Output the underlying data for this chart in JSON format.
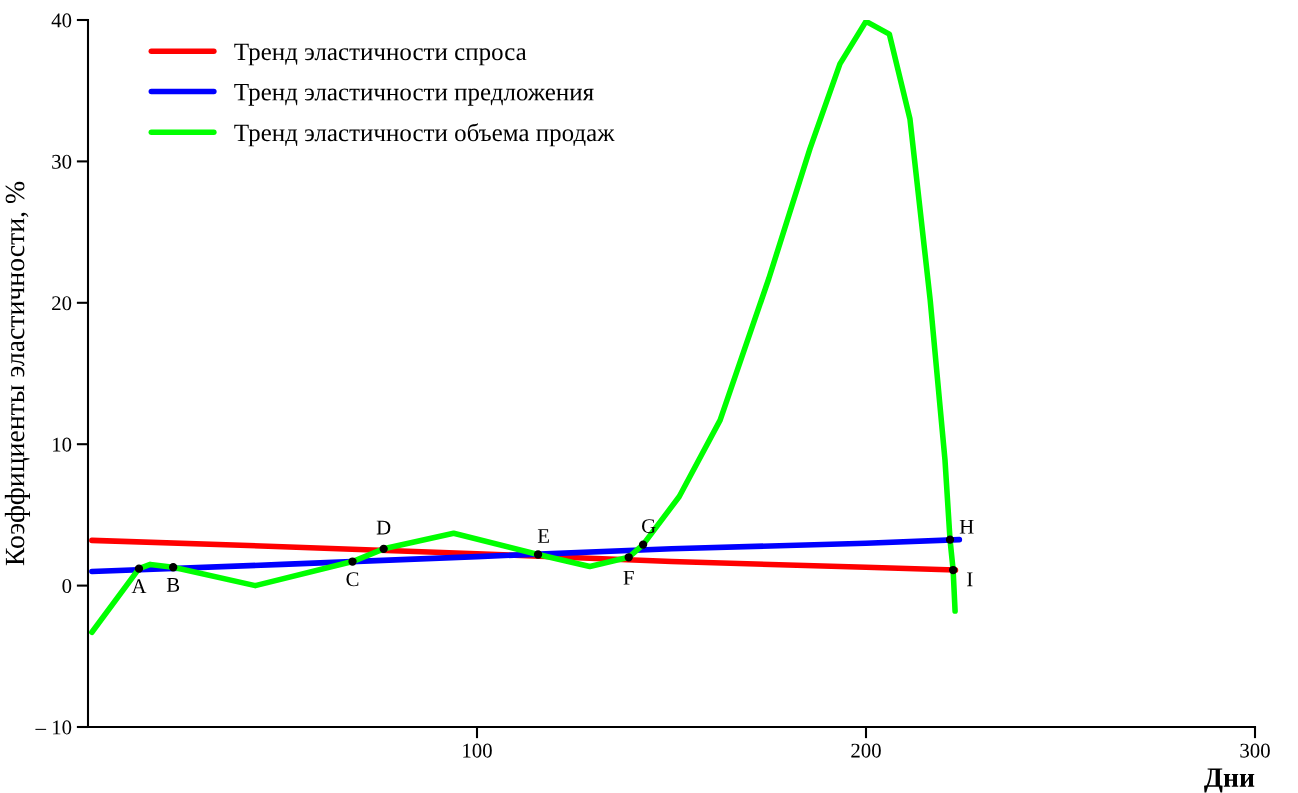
{
  "chart_data": {
    "type": "line",
    "xlabel": "Дни",
    "ylabel": "Коэффициенты эластичности, %",
    "xlim": [
      0,
      300
    ],
    "xticks": [
      100,
      200,
      300
    ],
    "ylim": [
      -10,
      40
    ],
    "yticks": [
      {
        "value": -10,
        "label": "– 10"
      },
      0,
      10,
      20,
      30,
      40
    ],
    "grid": false,
    "legend": "top left",
    "marker": "none",
    "line_style": "solid",
    "series": [
      {
        "name": "Тренд эластичности спроса",
        "color": "#ff0000",
        "x": [
          1,
          50,
          100,
          150,
          200,
          223
        ],
        "values": [
          3.2,
          2.75,
          2.25,
          1.7,
          1.3,
          1.1
        ]
      },
      {
        "name": "Тренд эластичности предложения",
        "color": "#0000ff",
        "x": [
          1,
          50,
          100,
          150,
          200,
          224
        ],
        "values": [
          1.0,
          1.5,
          2.05,
          2.6,
          3.0,
          3.25
        ]
      },
      {
        "name": "Тренд эластичности объема продаж",
        "color": "#00ff00",
        "x": [
          1,
          13.1,
          16,
          21.9,
          43,
          68,
          76,
          94,
          115.7,
          129,
          139,
          142.7,
          152,
          162.5,
          175,
          185.6,
          193.3,
          200,
          206,
          211.3,
          216.5,
          220.3,
          221.6,
          222.4,
          222.9
        ],
        "values": [
          -3.3,
          1.2,
          1.5,
          1.3,
          0,
          1.7,
          2.6,
          3.7,
          2.2,
          1.35,
          2.0,
          2.9,
          6.3,
          11.7,
          21.7,
          30.9,
          36.9,
          39.9,
          39.0,
          33.0,
          20.2,
          8.9,
          3.25,
          1.1,
          -1.8
        ]
      }
    ],
    "annotations": [
      {
        "text": "A",
        "x": 13.1,
        "y": 1.2
      },
      {
        "text": "B",
        "x": 21.9,
        "y": 1.3
      },
      {
        "text": "C",
        "x": 68,
        "y": 1.7
      },
      {
        "text": "D",
        "x": 76,
        "y": 2.6
      },
      {
        "text": "E",
        "x": 115.7,
        "y": 2.2
      },
      {
        "text": "F",
        "x": 139,
        "y": 2.0
      },
      {
        "text": "G",
        "x": 142.7,
        "y": 2.9
      },
      {
        "text": "H",
        "x": 221.6,
        "y": 3.25
      },
      {
        "text": "I",
        "x": 222.4,
        "y": 1.1
      }
    ]
  }
}
